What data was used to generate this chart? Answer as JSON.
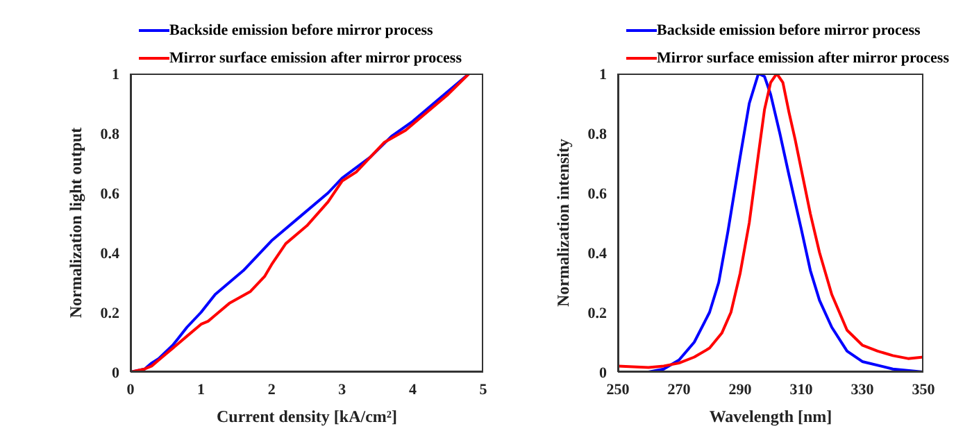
{
  "chart_data": [
    {
      "type": "line",
      "xlabel": "Current density [kA/cm²]",
      "ylabel": "Normalization light output",
      "xlim": [
        0,
        5
      ],
      "ylim": [
        0,
        1
      ],
      "xticks": [
        0,
        1,
        2,
        3,
        4,
        5
      ],
      "yticks": [
        0,
        0.2,
        0.4,
        0.6,
        0.8,
        1
      ],
      "legend": "top",
      "series": [
        {
          "name": "Backside emission before mirror process",
          "color": "#0000ff",
          "x": [
            0,
            0.2,
            0.3,
            0.4,
            0.6,
            0.8,
            1,
            1.2,
            1.4,
            1.6,
            1.8,
            2,
            2.4,
            2.8,
            3,
            3.4,
            3.7,
            4,
            4.4,
            4.8
          ],
          "values": [
            0,
            0.01,
            0.03,
            0.045,
            0.09,
            0.15,
            0.2,
            0.26,
            0.3,
            0.34,
            0.39,
            0.44,
            0.52,
            0.6,
            0.65,
            0.72,
            0.79,
            0.84,
            0.92,
            1
          ]
        },
        {
          "name": "Mirror surface emission after mirror process",
          "color": "#ff0000",
          "x": [
            0,
            0.2,
            0.3,
            0.4,
            0.6,
            0.8,
            1,
            1.1,
            1.2,
            1.4,
            1.7,
            1.9,
            2,
            2.2,
            2.5,
            2.8,
            3,
            3.2,
            3.6,
            3.9,
            4.1,
            4.5,
            4.8
          ],
          "values": [
            0,
            0.01,
            0.02,
            0.04,
            0.08,
            0.12,
            0.16,
            0.17,
            0.19,
            0.23,
            0.27,
            0.32,
            0.36,
            0.43,
            0.49,
            0.57,
            0.64,
            0.67,
            0.77,
            0.81,
            0.85,
            0.93,
            1
          ]
        }
      ]
    },
    {
      "type": "line",
      "xlabel": "Wavelength [nm]",
      "ylabel": "Normalization intensity",
      "xlim": [
        250,
        350
      ],
      "ylim": [
        0,
        1
      ],
      "xticks": [
        250,
        270,
        290,
        310,
        330,
        350
      ],
      "yticks": [
        0,
        0.2,
        0.4,
        0.6,
        0.8,
        1
      ],
      "legend": "top",
      "series": [
        {
          "name": "Backside emission before mirror process",
          "color": "#0000ff",
          "x": [
            250,
            260,
            265,
            270,
            275,
            280,
            283,
            286,
            290,
            293,
            296,
            298,
            300,
            303,
            306,
            310,
            313,
            316,
            320,
            325,
            330,
            340,
            350
          ],
          "values": [
            0,
            0,
            0.01,
            0.04,
            0.1,
            0.2,
            0.3,
            0.47,
            0.72,
            0.9,
            1,
            0.99,
            0.93,
            0.8,
            0.66,
            0.48,
            0.34,
            0.24,
            0.15,
            0.07,
            0.035,
            0.01,
            0
          ]
        },
        {
          "name": "Mirror surface emission after mirror process",
          "color": "#ff0000",
          "x": [
            250,
            260,
            265,
            270,
            275,
            280,
            284,
            287,
            290,
            293,
            296,
            298,
            300,
            302,
            304,
            306,
            308,
            310,
            313,
            316,
            320,
            325,
            330,
            335,
            340,
            345,
            350
          ],
          "values": [
            0.02,
            0.015,
            0.02,
            0.03,
            0.05,
            0.08,
            0.13,
            0.2,
            0.33,
            0.5,
            0.73,
            0.88,
            0.97,
            1,
            0.97,
            0.87,
            0.78,
            0.68,
            0.53,
            0.4,
            0.26,
            0.14,
            0.09,
            0.07,
            0.055,
            0.045,
            0.05
          ]
        }
      ]
    }
  ]
}
